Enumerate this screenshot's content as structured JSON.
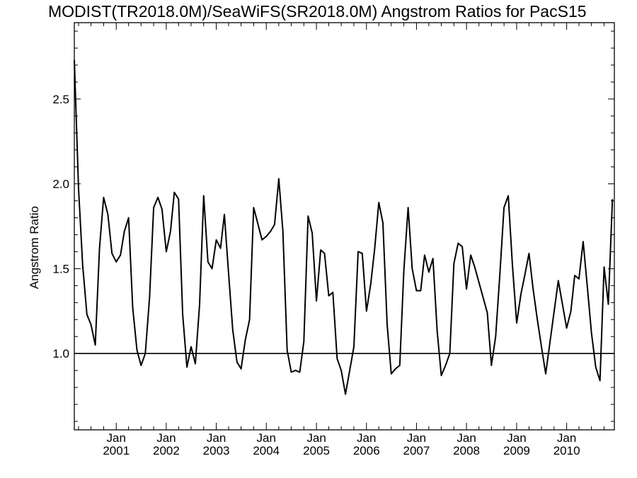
{
  "chart_data": {
    "type": "line",
    "title": "MODIST(TR2018.0M)/SeaWiFS(SR2018.0M)  Angstrom Ratios for PacS15",
    "ylabel": "Angstrom Ratio",
    "xlabel": "",
    "ylim": [
      0.55,
      2.95
    ],
    "xlim": [
      "2000-03-01",
      "2010-12-15"
    ],
    "yticks": [
      {
        "value": 1.0,
        "label": "1.0"
      },
      {
        "value": 1.5,
        "label": "1.5"
      },
      {
        "value": 2.0,
        "label": "2.0"
      },
      {
        "value": 2.5,
        "label": "2.5"
      }
    ],
    "xticks": [
      {
        "date": "2001-01-01",
        "month": "Jan",
        "year": "2001"
      },
      {
        "date": "2002-01-01",
        "month": "Jan",
        "year": "2002"
      },
      {
        "date": "2003-01-01",
        "month": "Jan",
        "year": "2003"
      },
      {
        "date": "2004-01-01",
        "month": "Jan",
        "year": "2004"
      },
      {
        "date": "2005-01-01",
        "month": "Jan",
        "year": "2005"
      },
      {
        "date": "2006-01-01",
        "month": "Jan",
        "year": "2006"
      },
      {
        "date": "2007-01-01",
        "month": "Jan",
        "year": "2007"
      },
      {
        "date": "2008-01-01",
        "month": "Jan",
        "year": "2008"
      },
      {
        "date": "2009-01-01",
        "month": "Jan",
        "year": "2009"
      },
      {
        "date": "2010-01-01",
        "month": "Jan",
        "year": "2010"
      }
    ],
    "reference_line": 1.0,
    "grid": false,
    "series": [
      {
        "color": "#000000",
        "x": [
          "2000-03-01",
          "2000-04-01",
          "2000-05-01",
          "2000-06-01",
          "2000-07-01",
          "2000-08-01",
          "2000-09-01",
          "2000-10-01",
          "2000-11-01",
          "2000-12-01",
          "2001-01-01",
          "2001-02-01",
          "2001-03-01",
          "2001-04-01",
          "2001-05-01",
          "2001-06-01",
          "2001-07-01",
          "2001-08-01",
          "2001-09-01",
          "2001-10-01",
          "2001-11-01",
          "2001-12-01",
          "2002-01-01",
          "2002-02-01",
          "2002-03-01",
          "2002-04-01",
          "2002-05-01",
          "2002-06-01",
          "2002-07-01",
          "2002-08-01",
          "2002-09-01",
          "2002-10-01",
          "2002-11-01",
          "2002-12-01",
          "2003-01-01",
          "2003-02-01",
          "2003-03-01",
          "2003-04-01",
          "2003-05-01",
          "2003-06-01",
          "2003-07-01",
          "2003-08-01",
          "2003-09-01",
          "2003-10-01",
          "2003-12-01",
          "2004-01-01",
          "2004-02-01",
          "2004-03-01",
          "2004-04-01",
          "2004-05-01",
          "2004-06-01",
          "2004-07-01",
          "2004-08-01",
          "2004-09-01",
          "2004-10-01",
          "2004-11-01",
          "2004-12-01",
          "2005-01-01",
          "2005-02-01",
          "2005-03-01",
          "2005-04-01",
          "2005-05-01",
          "2005-06-01",
          "2005-07-01",
          "2005-08-01",
          "2005-09-01",
          "2005-10-01",
          "2005-11-01",
          "2005-12-01",
          "2006-01-01",
          "2006-02-01",
          "2006-03-01",
          "2006-04-01",
          "2006-05-01",
          "2006-06-01",
          "2006-07-01",
          "2006-08-01",
          "2006-09-01",
          "2006-10-01",
          "2006-11-01",
          "2006-12-01",
          "2007-01-01",
          "2007-02-01",
          "2007-03-01",
          "2007-04-01",
          "2007-05-01",
          "2007-06-01",
          "2007-07-01",
          "2007-08-01",
          "2007-09-01",
          "2007-10-01",
          "2007-11-01",
          "2007-12-01",
          "2008-01-01",
          "2008-02-01",
          "2008-03-01",
          "2008-06-01",
          "2008-07-01",
          "2008-08-01",
          "2008-09-01",
          "2008-10-01",
          "2008-11-01",
          "2008-12-01",
          "2009-01-01",
          "2009-02-01",
          "2009-03-01",
          "2009-04-01",
          "2009-05-01",
          "2009-06-01",
          "2009-07-01",
          "2009-08-01",
          "2009-11-01",
          "2010-01-01",
          "2010-02-01",
          "2010-03-01",
          "2010-04-01",
          "2010-05-01",
          "2010-06-01",
          "2010-07-01",
          "2010-08-01",
          "2010-09-01",
          "2010-10-01",
          "2010-11-01",
          "2010-12-01"
        ],
        "y": [
          2.73,
          1.97,
          1.52,
          1.23,
          1.17,
          1.05,
          1.62,
          1.92,
          1.82,
          1.59,
          1.54,
          1.58,
          1.72,
          1.8,
          1.27,
          1.02,
          0.93,
          1.0,
          1.33,
          1.86,
          1.92,
          1.85,
          1.6,
          1.72,
          1.95,
          1.91,
          1.23,
          0.92,
          1.04,
          0.94,
          1.29,
          1.93,
          1.54,
          1.5,
          1.67,
          1.62,
          1.82,
          1.47,
          1.14,
          0.95,
          0.91,
          1.08,
          1.2,
          1.86,
          1.67,
          1.69,
          1.72,
          1.76,
          2.03,
          1.72,
          1.02,
          0.89,
          0.9,
          0.89,
          1.07,
          1.81,
          1.71,
          1.31,
          1.61,
          1.59,
          1.34,
          1.36,
          0.97,
          0.9,
          0.76,
          0.9,
          1.04,
          1.6,
          1.59,
          1.25,
          1.41,
          1.61,
          1.89,
          1.77,
          1.17,
          0.88,
          0.91,
          0.93,
          1.49,
          1.86,
          1.5,
          1.37,
          1.37,
          1.58,
          1.48,
          1.56,
          1.13,
          0.87,
          0.93,
          1.0,
          1.53,
          1.65,
          1.63,
          1.38,
          1.58,
          1.51,
          1.24,
          0.93,
          1.1,
          1.47,
          1.86,
          1.93,
          1.52,
          1.18,
          1.35,
          1.46,
          1.59,
          1.38,
          1.2,
          1.04,
          0.88,
          1.43,
          1.15,
          1.25,
          1.46,
          1.44,
          1.66,
          1.39,
          1.12,
          0.92,
          0.84,
          1.51,
          1.29,
          1.91
        ]
      }
    ]
  }
}
